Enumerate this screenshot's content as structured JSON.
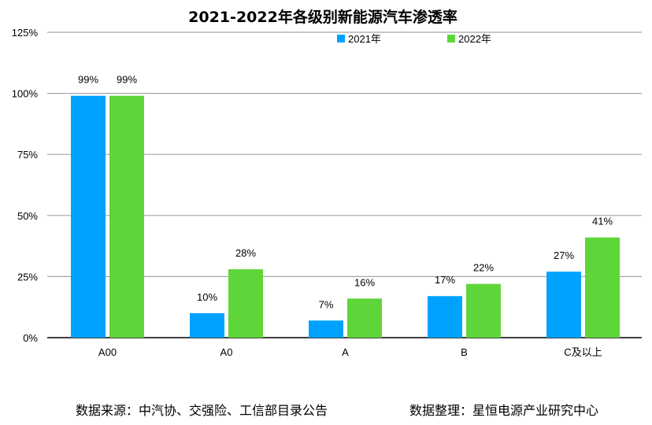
{
  "chart_data": {
    "type": "bar",
    "title": "2021-2022年各级别新能源汽车渗透率",
    "categories": [
      "A00",
      "A0",
      "A",
      "B",
      "C及以上"
    ],
    "series": [
      {
        "name": "2021年",
        "values": [
          99,
          10,
          7,
          17,
          27
        ],
        "labels": [
          "99%",
          "10%",
          "7%",
          "17%",
          "27%"
        ],
        "color": "#00a2ff"
      },
      {
        "name": "2022年",
        "values": [
          99,
          28,
          16,
          22,
          41
        ],
        "labels": [
          "99%",
          "28%",
          "16%",
          "22%",
          "41%"
        ],
        "color": "#5ed639"
      }
    ],
    "ylim": [
      0,
      125
    ],
    "yticks": [
      0,
      25,
      50,
      75,
      100,
      125
    ],
    "ytick_labels": [
      "0%",
      "25%",
      "50%",
      "75%",
      "100%",
      "125%"
    ],
    "grid": true,
    "legend_position": "top-right"
  },
  "footer": {
    "source": "数据来源：中汽协、交强险、工信部目录公告",
    "compiled_by": "数据整理：星恒电源产业研究中心"
  }
}
